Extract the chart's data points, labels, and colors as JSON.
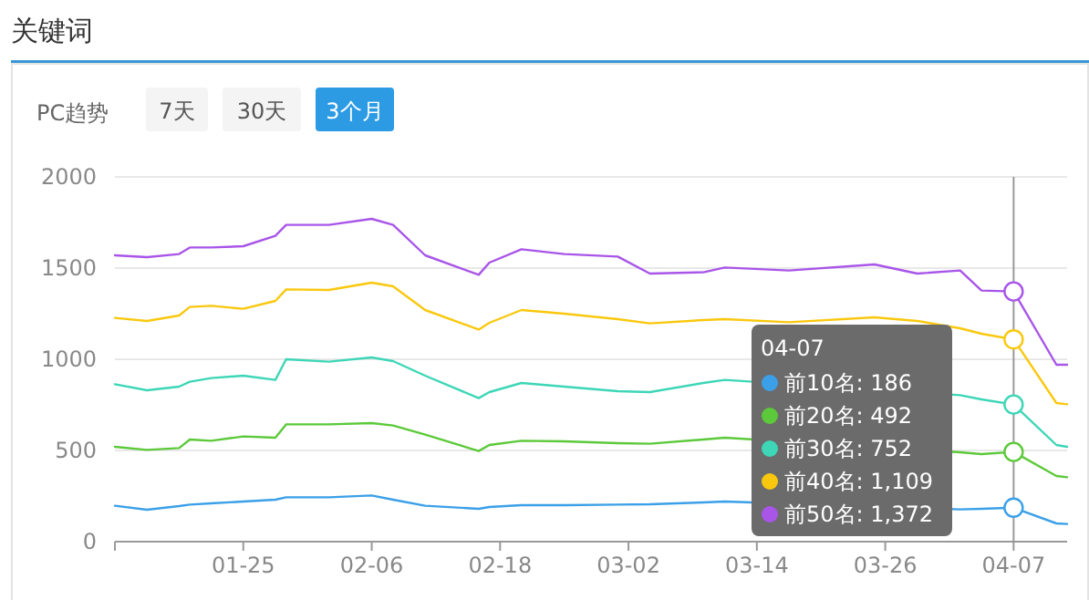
{
  "chart_data": {
    "type": "line",
    "title": "关键词",
    "annotations": [
      "PC趋势",
      "7天",
      "30天",
      "3个月",
      "04-07",
      ": 186",
      ": 492",
      ": 752",
      ": 1,109",
      ": 1,372"
    ],
    "x": [
      "--01-13",
      "--01-16",
      "--01-19",
      "--01-20",
      "--01-22",
      "--01-25",
      "--01-28",
      "--01-29",
      "--02-02",
      "--02-06",
      "--02-08",
      "--02-11",
      "--02-16",
      "--02-17",
      "--02-20",
      "--02-24",
      "--03-01",
      "--03-04",
      "--03-09",
      "--03-11",
      "--03-17",
      "--03-25",
      "--03-29",
      "--04-02",
      "--04-04",
      "--04-07",
      "--04-11",
      "--04-12"
    ],
    "series": [
      {
        "name": "前10名",
        "color": "#3ba0e8",
        "values": [
          197,
          175,
          195,
          203,
          210,
          220,
          230,
          243,
          243,
          253,
          230,
          197,
          180,
          190,
          200,
          200,
          203,
          205,
          215,
          220,
          null,
          null,
          null,
          177,
          180,
          186,
          100,
          97
        ]
      },
      {
        "name": "前20名",
        "color": "#5cc93a",
        "values": [
          520,
          503,
          513,
          560,
          553,
          577,
          570,
          643,
          643,
          650,
          637,
          587,
          497,
          530,
          553,
          550,
          540,
          537,
          560,
          570,
          null,
          null,
          null,
          490,
          480,
          492,
          360,
          353
        ]
      },
      {
        "name": "前30名",
        "color": "#3dd6b6",
        "values": [
          863,
          830,
          850,
          877,
          897,
          910,
          887,
          1000,
          987,
          1010,
          990,
          910,
          787,
          820,
          870,
          850,
          825,
          820,
          870,
          887,
          null,
          null,
          null,
          803,
          780,
          752,
          530,
          520
        ]
      },
      {
        "name": "前40名",
        "color": "#f9c80e",
        "values": [
          1227,
          1210,
          1240,
          1287,
          1293,
          1277,
          1320,
          1383,
          1380,
          1420,
          1400,
          1270,
          1163,
          1200,
          1270,
          1250,
          1220,
          1197,
          1215,
          1220,
          1203,
          1230,
          1210,
          1170,
          1140,
          1109,
          760,
          753
        ]
      },
      {
        "name": "前50名",
        "color": "#a855e8",
        "values": [
          1570,
          1560,
          1577,
          1613,
          1613,
          1620,
          1677,
          1737,
          1737,
          1770,
          1737,
          1570,
          1463,
          1530,
          1603,
          1577,
          1563,
          1470,
          1477,
          1503,
          1487,
          1520,
          1470,
          1487,
          1377,
          1372,
          970,
          970
        ]
      }
    ],
    "xlim": [
      "--01-13",
      "--04-12"
    ],
    "xticks": [
      {
        "value": "--01-13",
        "label": null
      },
      {
        "value": "--01-25",
        "label": "01-25"
      },
      {
        "value": "--02-06",
        "label": "02-06"
      },
      {
        "value": "--02-18",
        "label": "02-18"
      },
      {
        "value": "--03-02",
        "label": "03-02"
      },
      {
        "value": "--03-14",
        "label": "03-14"
      },
      {
        "value": "--03-26",
        "label": "03-26"
      },
      {
        "value": "--04-07",
        "label": "04-07"
      }
    ],
    "ylim": [
      0,
      2000
    ],
    "yticks": [
      0,
      500,
      1000,
      1500,
      2000
    ],
    "grid": "y",
    "legend": "bottom right",
    "marker": "none",
    "line_style": "solid",
    "ref_lines": [
      {
        "axis": "x",
        "value": "--04-07",
        "label": null,
        "color": "#999999"
      }
    ]
  }
}
